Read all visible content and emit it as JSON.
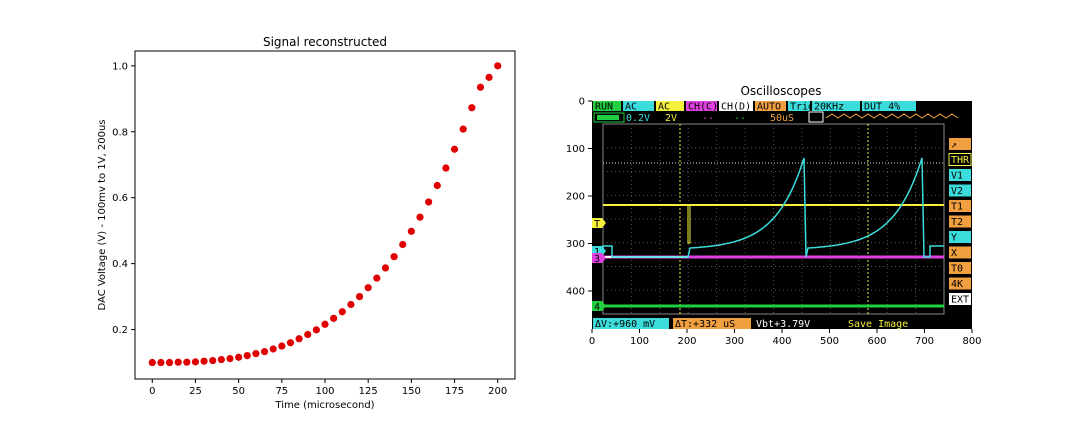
{
  "chart_data": [
    {
      "type": "scatter",
      "title": "Signal reconstructed",
      "xlabel": "Time (microsecond)",
      "ylabel": "DAC Voltage (V) - 100mv to 1V, 200us",
      "xlim": [
        -10,
        210
      ],
      "ylim": [
        0.05,
        1.045
      ],
      "xticks": [
        "0",
        "25",
        "50",
        "75",
        "100",
        "125",
        "150",
        "175",
        "200"
      ],
      "yticks": [
        "0.2",
        "0.4",
        "0.6",
        "0.8",
        "1.0"
      ],
      "marker_color": "#e00000",
      "x": [
        0,
        5,
        10,
        15,
        20,
        25,
        30,
        35,
        40,
        45,
        50,
        55,
        60,
        65,
        70,
        75,
        80,
        85,
        90,
        95,
        100,
        105,
        110,
        115,
        120,
        125,
        130,
        135,
        140,
        145,
        150,
        155,
        160,
        165,
        170,
        175,
        180,
        185,
        190,
        195,
        200
      ],
      "y": [
        0.1,
        0.1,
        0.1,
        0.101,
        0.101,
        0.102,
        0.104,
        0.106,
        0.109,
        0.112,
        0.116,
        0.121,
        0.127,
        0.133,
        0.141,
        0.15,
        0.16,
        0.172,
        0.185,
        0.199,
        0.216,
        0.234,
        0.254,
        0.276,
        0.3,
        0.327,
        0.356,
        0.387,
        0.421,
        0.458,
        0.498,
        0.541,
        0.587,
        0.637,
        0.69,
        0.747,
        0.808,
        0.873,
        0.935,
        0.965,
        1.0
      ]
    },
    {
      "type": "image",
      "title": "Oscilloscopes",
      "xlim": [
        0,
        800
      ],
      "ylim": [
        0,
        480
      ],
      "xticks": [
        "0",
        "100",
        "200",
        "300",
        "400",
        "500",
        "600",
        "700",
        "800"
      ],
      "yticks": [
        "0",
        "100",
        "200",
        "300",
        "400"
      ]
    }
  ],
  "oscilloscope": {
    "status_bar": [
      "RUN",
      "AC",
      "AC",
      "CH(C)",
      "CH(D)",
      "AUTO",
      "Trig",
      "20KHz",
      "DUT 4%"
    ],
    "row2": [
      "0.2V",
      "2V",
      "--",
      "--",
      "50uS"
    ],
    "side_buttons": [
      "↗",
      "THR",
      "V1",
      "V2",
      "T1",
      "T2",
      "Y",
      "X",
      "T0",
      "4K",
      "EXT"
    ],
    "bottom_bar": [
      "ΔV:+960 mV",
      "ΔT:+332 uS",
      "Vbt+3.79V",
      "Save Image"
    ],
    "channel_markers": [
      "T",
      "1",
      "3",
      "4"
    ],
    "colors": {
      "yellow": "#f5f03c",
      "cyan": "#3cdcdc",
      "magenta": "#e040e0",
      "green": "#20d040",
      "orange": "#f0a040"
    }
  }
}
